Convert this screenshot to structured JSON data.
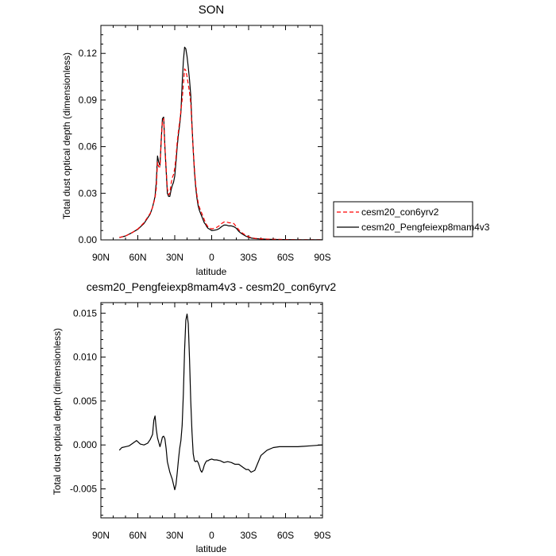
{
  "chart_data": [
    {
      "type": "line",
      "title": "SON",
      "xlabel": "latitude",
      "ylabel": "Total dust optical depth (dimensionless)",
      "xlim": [
        90,
        -90
      ],
      "ylim": [
        0.0,
        0.138
      ],
      "x_ticks": [
        90,
        60,
        30,
        0,
        -30,
        -60,
        -90
      ],
      "x_tick_labels": [
        "90N",
        "60N",
        "30N",
        "0",
        "30S",
        "60S",
        "90S"
      ],
      "y_ticks": [
        0.0,
        0.03,
        0.06,
        0.09,
        0.12
      ],
      "y_tick_labels": [
        "0.00",
        "0.03",
        "0.06",
        "0.09",
        "0.12"
      ],
      "legend": {
        "placement": "right-outside",
        "entries": [
          "cesm20_con6yrv2",
          "cesm20_Pengfeiexp8mam4v3"
        ]
      },
      "series": [
        {
          "name": "cesm20_con6yrv2",
          "color": "#ff0000",
          "dash": "dashed",
          "x": [
            75,
            70,
            65,
            60,
            55,
            50,
            48,
            46,
            45,
            44,
            43,
            42,
            41,
            40,
            39,
            38,
            37,
            36,
            35,
            34,
            33,
            32,
            31,
            30,
            29,
            28,
            27,
            26,
            25,
            24,
            23,
            22,
            21,
            20,
            19,
            18,
            17,
            16,
            15,
            14,
            13,
            12,
            11,
            10,
            9,
            8,
            7,
            6,
            5,
            4,
            3,
            2,
            1,
            0,
            -2,
            -4,
            -6,
            -8,
            -10,
            -12,
            -14,
            -16,
            -18,
            -20,
            -22,
            -24,
            -26,
            -28,
            -30,
            -32,
            -35,
            -40,
            -45,
            -50,
            -55,
            -60,
            -70,
            -80,
            -90
          ],
          "values": [
            0.0015,
            0.0025,
            0.0045,
            0.007,
            0.011,
            0.017,
            0.021,
            0.027,
            0.033,
            0.05,
            0.047,
            0.047,
            0.063,
            0.077,
            0.078,
            0.06,
            0.046,
            0.033,
            0.029,
            0.03,
            0.036,
            0.04,
            0.042,
            0.046,
            0.053,
            0.063,
            0.07,
            0.076,
            0.083,
            0.09,
            0.1,
            0.11,
            0.109,
            0.105,
            0.1,
            0.095,
            0.088,
            0.072,
            0.058,
            0.046,
            0.036,
            0.029,
            0.024,
            0.021,
            0.019,
            0.017,
            0.015,
            0.013,
            0.011,
            0.0095,
            0.0085,
            0.008,
            0.0075,
            0.007,
            0.0075,
            0.008,
            0.009,
            0.0105,
            0.0115,
            0.0115,
            0.011,
            0.011,
            0.0105,
            0.0085,
            0.0065,
            0.005,
            0.0038,
            0.0028,
            0.002,
            0.0015,
            0.001,
            0.0007,
            0.0005,
            0.0004,
            0.0003,
            0.0002,
            0.0001,
            0.0001,
            0.0001
          ]
        },
        {
          "name": "cesm20_Pengfeiexp8mam4v3",
          "color": "#000000",
          "dash": "solid",
          "x": [
            75,
            70,
            65,
            60,
            55,
            50,
            48,
            46,
            45,
            44,
            43,
            42,
            41,
            40,
            39,
            38,
            37,
            36,
            35,
            34,
            33,
            32,
            31,
            30,
            29,
            28,
            27,
            26,
            25,
            24,
            23,
            22,
            21,
            20,
            19,
            18,
            17,
            16,
            15,
            14,
            13,
            12,
            11,
            10,
            9,
            8,
            7,
            6,
            5,
            4,
            3,
            2,
            1,
            0,
            -2,
            -4,
            -6,
            -8,
            -10,
            -12,
            -14,
            -16,
            -18,
            -20,
            -22,
            -24,
            -26,
            -28,
            -30,
            -32,
            -35,
            -40,
            -45,
            -50,
            -55,
            -60,
            -70,
            -80,
            -90
          ],
          "values": [
            0.0015,
            0.0025,
            0.0045,
            0.0068,
            0.0105,
            0.0165,
            0.021,
            0.028,
            0.037,
            0.054,
            0.05,
            0.048,
            0.064,
            0.078,
            0.079,
            0.06,
            0.045,
            0.03,
            0.028,
            0.028,
            0.032,
            0.035,
            0.037,
            0.041,
            0.05,
            0.06,
            0.068,
            0.074,
            0.082,
            0.1,
            0.115,
            0.124,
            0.123,
            0.118,
            0.111,
            0.103,
            0.093,
            0.074,
            0.058,
            0.044,
            0.034,
            0.027,
            0.022,
            0.019,
            0.017,
            0.015,
            0.013,
            0.011,
            0.01,
            0.0085,
            0.0075,
            0.007,
            0.0065,
            0.006,
            0.0062,
            0.0065,
            0.0072,
            0.0085,
            0.0095,
            0.0095,
            0.009,
            0.009,
            0.0085,
            0.0075,
            0.0055,
            0.0042,
            0.0032,
            0.0023,
            0.0017,
            0.0012,
            0.0008,
            0.0006,
            0.0004,
            0.0003,
            0.0002,
            0.0002,
            0.0001,
            0.0001,
            0.0001
          ]
        }
      ]
    },
    {
      "type": "line",
      "title": "cesm20_Pengfeiexp8mam4v3 - cesm20_con6yrv2",
      "xlabel": "latitude",
      "ylabel": "Total dust optical depth (dimensionless)",
      "xlim": [
        90,
        -90
      ],
      "ylim": [
        -0.0083,
        0.0162
      ],
      "x_ticks": [
        90,
        60,
        30,
        0,
        -30,
        -60,
        -90
      ],
      "x_tick_labels": [
        "90N",
        "60N",
        "30N",
        "0",
        "30S",
        "60S",
        "90S"
      ],
      "y_ticks": [
        -0.005,
        0.0,
        0.005,
        0.01,
        0.015
      ],
      "y_tick_labels": [
        "-0.005",
        "0.000",
        "0.005",
        "0.010",
        "0.015"
      ],
      "series": [
        {
          "name": "cesm20_Pengfeiexp8mam4v3 - cesm20_con6yrv2",
          "color": "#000000",
          "dash": "solid",
          "x": [
            75,
            73,
            70,
            67,
            64,
            61,
            58,
            55,
            52,
            50,
            48,
            47,
            46,
            45,
            44,
            43,
            42,
            41,
            40,
            39,
            38,
            37,
            36,
            35,
            34,
            33,
            32,
            31,
            30,
            29,
            28,
            27,
            26,
            25,
            24,
            23,
            22,
            21,
            20,
            19,
            18,
            17,
            16,
            15,
            14,
            13,
            12,
            11,
            10,
            9,
            8,
            7,
            6,
            5,
            4,
            3,
            2,
            0,
            -2,
            -4,
            -7,
            -10,
            -13,
            -16,
            -19,
            -22,
            -24,
            -26,
            -28,
            -30,
            -32,
            -35,
            -40,
            -45,
            -50,
            -55,
            -60,
            -70,
            -80,
            -90
          ],
          "values": [
            -0.0006,
            -0.0003,
            -0.0002,
            -0.0001,
            0.0002,
            0.0005,
            0.0001,
            0.0,
            0.0002,
            0.0006,
            0.0012,
            0.0028,
            0.0033,
            0.0018,
            0.0008,
            0.0003,
            -0.0002,
            0.0003,
            0.0009,
            0.001,
            0.0007,
            -0.0004,
            -0.0019,
            -0.0025,
            -0.0031,
            -0.0035,
            -0.0039,
            -0.0045,
            -0.0051,
            -0.0045,
            -0.0032,
            -0.0017,
            -0.0004,
            0.0005,
            0.0022,
            0.0058,
            0.0108,
            0.0142,
            0.0149,
            0.0138,
            0.0098,
            0.005,
            0.0015,
            -0.001,
            -0.0018,
            -0.0019,
            -0.0018,
            -0.002,
            -0.0024,
            -0.0029,
            -0.0031,
            -0.0028,
            -0.0023,
            -0.002,
            -0.0018,
            -0.0018,
            -0.0017,
            -0.0016,
            -0.0017,
            -0.0017,
            -0.0018,
            -0.002,
            -0.0019,
            -0.002,
            -0.0022,
            -0.0022,
            -0.0024,
            -0.0026,
            -0.0028,
            -0.0028,
            -0.0031,
            -0.0029,
            -0.0012,
            -0.0006,
            -0.0003,
            -0.0002,
            -0.0002,
            -0.0002,
            -0.0001,
            0.0
          ]
        }
      ]
    }
  ]
}
